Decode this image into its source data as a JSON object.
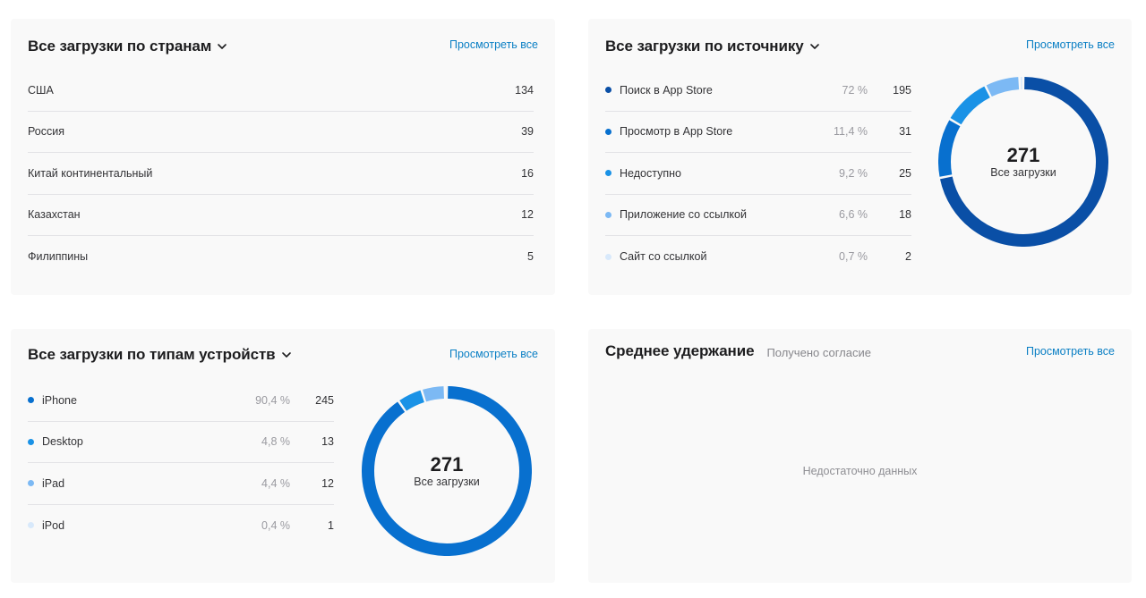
{
  "countries": {
    "title": "Все загрузки по странам",
    "view_all": "Просмотреть все",
    "rows": [
      {
        "name": "США",
        "value": "134"
      },
      {
        "name": "Россия",
        "value": "39"
      },
      {
        "name": "Китай континентальный",
        "value": "16"
      },
      {
        "name": "Казахстан",
        "value": "12"
      },
      {
        "name": "Филиппины",
        "value": "5"
      }
    ]
  },
  "sources": {
    "title": "Все загрузки по источнику",
    "view_all": "Просмотреть все",
    "rows": [
      {
        "name": "Поиск в App Store",
        "pct": "72 %",
        "value": "195",
        "color": "#0a4fa6"
      },
      {
        "name": "Просмотр в App Store",
        "pct": "11,4 %",
        "value": "31",
        "color": "#0870cf"
      },
      {
        "name": "Недоступно",
        "pct": "9,2 %",
        "value": "25",
        "color": "#1a92e6"
      },
      {
        "name": "Приложение со ссылкой",
        "pct": "6,6 %",
        "value": "18",
        "color": "#7cb9f4"
      },
      {
        "name": "Сайт со ссылкой",
        "pct": "0,7 %",
        "value": "2",
        "color": "#d8e9fb"
      }
    ],
    "donut": {
      "total": "271",
      "label": "Все загрузки"
    }
  },
  "devices": {
    "title": "Все загрузки по типам устройств",
    "view_all": "Просмотреть все",
    "rows": [
      {
        "name": "iPhone",
        "pct": "90,4 %",
        "value": "245",
        "color": "#0870cf"
      },
      {
        "name": "Desktop",
        "pct": "4,8 %",
        "value": "13",
        "color": "#1a92e6"
      },
      {
        "name": "iPad",
        "pct": "4,4 %",
        "value": "12",
        "color": "#7cb9f4"
      },
      {
        "name": "iPod",
        "pct": "0,4 %",
        "value": "1",
        "color": "#d8e9fb"
      }
    ],
    "donut": {
      "total": "271",
      "label": "Все загрузки"
    }
  },
  "retention": {
    "title": "Среднее удержание",
    "subtitle": "Получено согласие",
    "view_all": "Просмотреть все",
    "empty": "Недостаточно данных"
  },
  "chart_data": [
    {
      "type": "pie",
      "title": "Все загрузки по источнику",
      "categories": [
        "Поиск в App Store",
        "Просмотр в App Store",
        "Недоступно",
        "Приложение со ссылкой",
        "Сайт со ссылкой"
      ],
      "values": [
        195,
        31,
        25,
        18,
        2
      ],
      "percentages": [
        72,
        11.4,
        9.2,
        6.6,
        0.7
      ],
      "total": 271,
      "center_label": "Все загрузки"
    },
    {
      "type": "pie",
      "title": "Все загрузки по типам устройств",
      "categories": [
        "iPhone",
        "Desktop",
        "iPad",
        "iPod"
      ],
      "values": [
        245,
        13,
        12,
        1
      ],
      "percentages": [
        90.4,
        4.8,
        4.4,
        0.4
      ],
      "total": 271,
      "center_label": "Все загрузки"
    },
    {
      "type": "table",
      "title": "Все загрузки по странам",
      "categories": [
        "США",
        "Россия",
        "Китай континентальный",
        "Казахстан",
        "Филиппины"
      ],
      "values": [
        134,
        39,
        16,
        12,
        5
      ]
    }
  ]
}
